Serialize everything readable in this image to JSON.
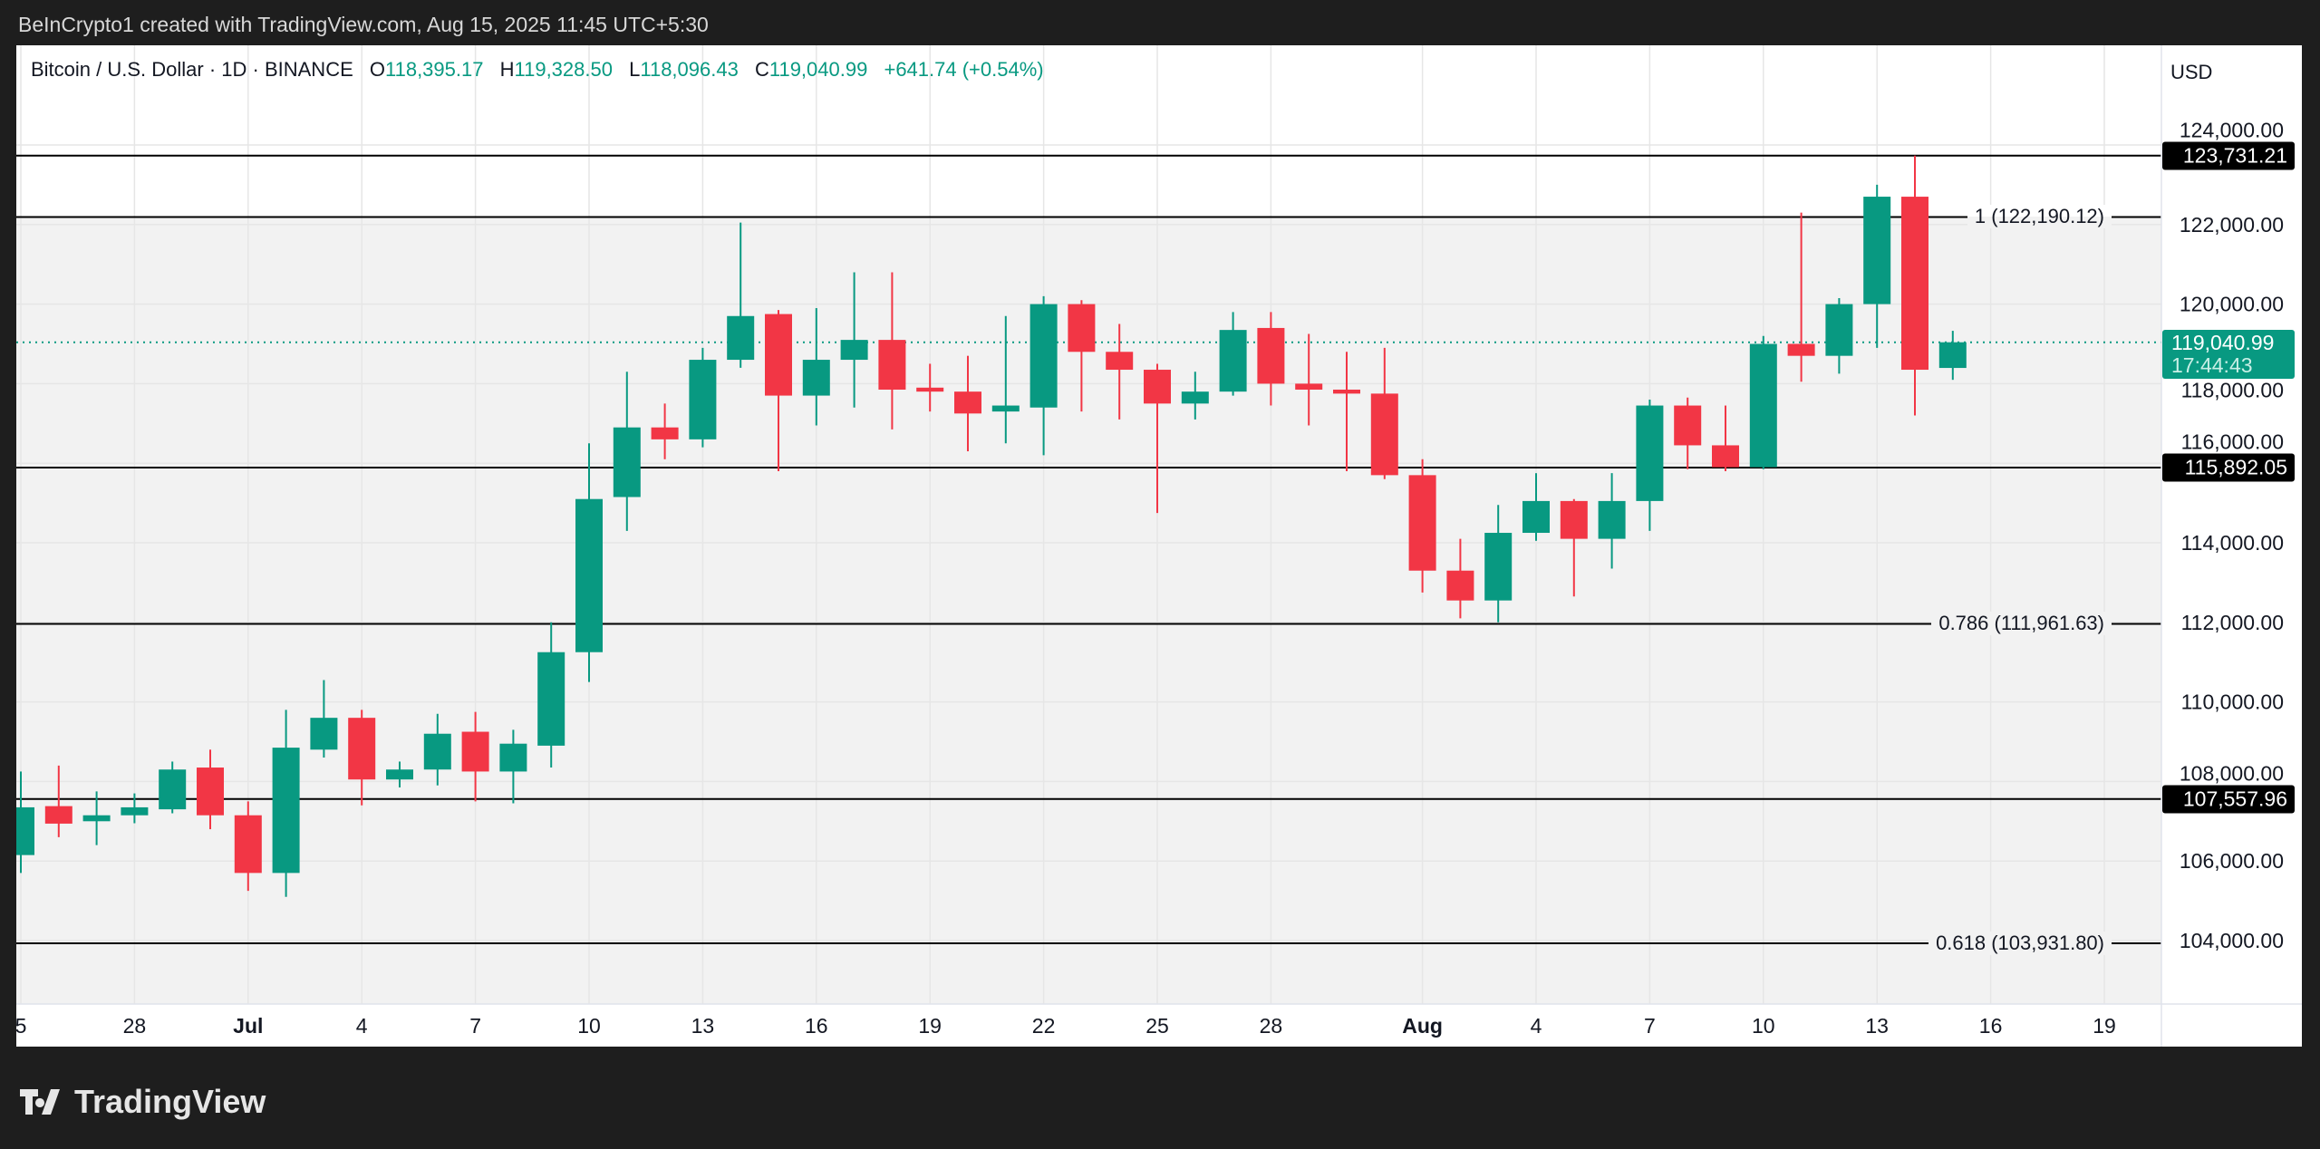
{
  "credit": "BeInCrypto1 created with TradingView.com, Aug 15, 2025 11:45 UTC+5:30",
  "legend": {
    "symbol": "Bitcoin / U.S. Dollar · 1D · BINANCE",
    "o_label": "O",
    "o": "118,395.17",
    "h_label": "H",
    "h": "119,328.50",
    "l_label": "L",
    "l": "118,096.43",
    "c_label": "C",
    "c": "119,040.99",
    "change": "+641.74 (+0.54%)"
  },
  "currency": "USD",
  "current_price": {
    "value": "119,040.99",
    "countdown": "17:44:43"
  },
  "logo_text": "TradingView",
  "colors": {
    "up": "#089981",
    "down": "#f23645",
    "line": "#000000",
    "grid": "#e6e6e6",
    "zone": "#f2f2f2"
  },
  "chart_data": {
    "type": "candlestick",
    "ylim": [
      102500,
      125600
    ],
    "grid": true,
    "y_ticks": [
      "104,000.00",
      "106,000.00",
      "108,000.00",
      "110,000.00",
      "112,000.00",
      "114,000.00",
      "116,000.00",
      "118,000.00",
      "120,000.00",
      "122,000.00",
      "124,000.00"
    ],
    "x_ticks": [
      {
        "date": "2025-06-25",
        "label": "5"
      },
      {
        "date": "2025-06-28",
        "label": "28"
      },
      {
        "date": "2025-07-01",
        "label": "Jul"
      },
      {
        "date": "2025-07-04",
        "label": "4"
      },
      {
        "date": "2025-07-07",
        "label": "7"
      },
      {
        "date": "2025-07-10",
        "label": "10"
      },
      {
        "date": "2025-07-13",
        "label": "13"
      },
      {
        "date": "2025-07-16",
        "label": "16"
      },
      {
        "date": "2025-07-19",
        "label": "19"
      },
      {
        "date": "2025-07-22",
        "label": "22"
      },
      {
        "date": "2025-07-25",
        "label": "25"
      },
      {
        "date": "2025-07-28",
        "label": "28"
      },
      {
        "date": "2025-08-01",
        "label": "Aug"
      },
      {
        "date": "2025-08-04",
        "label": "4"
      },
      {
        "date": "2025-08-07",
        "label": "7"
      },
      {
        "date": "2025-08-10",
        "label": "10"
      },
      {
        "date": "2025-08-13",
        "label": "13"
      },
      {
        "date": "2025-08-16",
        "label": "16"
      },
      {
        "date": "2025-08-19",
        "label": "19"
      }
    ],
    "candles": [
      {
        "date": "2025-06-25",
        "o": 106150,
        "h": 108250,
        "l": 105700,
        "c": 107350
      },
      {
        "date": "2025-06-26",
        "o": 107380,
        "h": 108400,
        "l": 106600,
        "c": 106940
      },
      {
        "date": "2025-06-27",
        "o": 107000,
        "h": 107750,
        "l": 106400,
        "c": 107150
      },
      {
        "date": "2025-06-28",
        "o": 107150,
        "h": 107700,
        "l": 106950,
        "c": 107350
      },
      {
        "date": "2025-06-29",
        "o": 107300,
        "h": 108500,
        "l": 107200,
        "c": 108300
      },
      {
        "date": "2025-06-30",
        "o": 108350,
        "h": 108800,
        "l": 106800,
        "c": 107150
      },
      {
        "date": "2025-07-01",
        "o": 107150,
        "h": 107500,
        "l": 105250,
        "c": 105700
      },
      {
        "date": "2025-07-02",
        "o": 105700,
        "h": 109800,
        "l": 105100,
        "c": 108850
      },
      {
        "date": "2025-07-03",
        "o": 108800,
        "h": 110550,
        "l": 108600,
        "c": 109600
      },
      {
        "date": "2025-07-04",
        "o": 109600,
        "h": 109800,
        "l": 107400,
        "c": 108050
      },
      {
        "date": "2025-07-05",
        "o": 108050,
        "h": 108500,
        "l": 107850,
        "c": 108300
      },
      {
        "date": "2025-07-06",
        "o": 108300,
        "h": 109700,
        "l": 107900,
        "c": 109200
      },
      {
        "date": "2025-07-07",
        "o": 109250,
        "h": 109750,
        "l": 107500,
        "c": 108250
      },
      {
        "date": "2025-07-08",
        "o": 108250,
        "h": 109300,
        "l": 107450,
        "c": 108950
      },
      {
        "date": "2025-07-09",
        "o": 108900,
        "h": 112000,
        "l": 108350,
        "c": 111250
      },
      {
        "date": "2025-07-10",
        "o": 111250,
        "h": 116500,
        "l": 110500,
        "c": 115100
      },
      {
        "date": "2025-07-11",
        "o": 115150,
        "h": 118300,
        "l": 114300,
        "c": 116900
      },
      {
        "date": "2025-07-12",
        "o": 116900,
        "h": 117500,
        "l": 116100,
        "c": 116600
      },
      {
        "date": "2025-07-13",
        "o": 116600,
        "h": 118900,
        "l": 116400,
        "c": 118600
      },
      {
        "date": "2025-07-14",
        "o": 118600,
        "h": 122050,
        "l": 118400,
        "c": 119700
      },
      {
        "date": "2025-07-15",
        "o": 119750,
        "h": 119850,
        "l": 115800,
        "c": 117700
      },
      {
        "date": "2025-07-16",
        "o": 117700,
        "h": 119900,
        "l": 116950,
        "c": 118600
      },
      {
        "date": "2025-07-17",
        "o": 118600,
        "h": 120800,
        "l": 117400,
        "c": 119100
      },
      {
        "date": "2025-07-18",
        "o": 119100,
        "h": 120800,
        "l": 116850,
        "c": 117850
      },
      {
        "date": "2025-07-19",
        "o": 117900,
        "h": 118500,
        "l": 117300,
        "c": 117800
      },
      {
        "date": "2025-07-20",
        "o": 117800,
        "h": 118700,
        "l": 116300,
        "c": 117250
      },
      {
        "date": "2025-07-21",
        "o": 117300,
        "h": 119700,
        "l": 116500,
        "c": 117450
      },
      {
        "date": "2025-07-22",
        "o": 117400,
        "h": 120200,
        "l": 116200,
        "c": 120000
      },
      {
        "date": "2025-07-23",
        "o": 120000,
        "h": 120100,
        "l": 117300,
        "c": 118800
      },
      {
        "date": "2025-07-24",
        "o": 118800,
        "h": 119500,
        "l": 117100,
        "c": 118350
      },
      {
        "date": "2025-07-25",
        "o": 118350,
        "h": 118500,
        "l": 114750,
        "c": 117500
      },
      {
        "date": "2025-07-26",
        "o": 117500,
        "h": 118300,
        "l": 117100,
        "c": 117800
      },
      {
        "date": "2025-07-27",
        "o": 117800,
        "h": 119800,
        "l": 117700,
        "c": 119350
      },
      {
        "date": "2025-07-28",
        "o": 119400,
        "h": 119800,
        "l": 117450,
        "c": 118000
      },
      {
        "date": "2025-07-29",
        "o": 118000,
        "h": 119250,
        "l": 116950,
        "c": 117850
      },
      {
        "date": "2025-07-30",
        "o": 117850,
        "h": 118800,
        "l": 115800,
        "c": 117750
      },
      {
        "date": "2025-07-31",
        "o": 117750,
        "h": 118900,
        "l": 115600,
        "c": 115700
      },
      {
        "date": "2025-08-01",
        "o": 115700,
        "h": 116100,
        "l": 112750,
        "c": 113300
      },
      {
        "date": "2025-08-02",
        "o": 113300,
        "h": 114100,
        "l": 112100,
        "c": 112550
      },
      {
        "date": "2025-08-03",
        "o": 112550,
        "h": 114950,
        "l": 112000,
        "c": 114250
      },
      {
        "date": "2025-08-04",
        "o": 114250,
        "h": 115750,
        "l": 114050,
        "c": 115050
      },
      {
        "date": "2025-08-05",
        "o": 115050,
        "h": 115100,
        "l": 112650,
        "c": 114100
      },
      {
        "date": "2025-08-06",
        "o": 114100,
        "h": 115750,
        "l": 113350,
        "c": 115050
      },
      {
        "date": "2025-08-07",
        "o": 115050,
        "h": 117600,
        "l": 114300,
        "c": 117450
      },
      {
        "date": "2025-08-08",
        "o": 117450,
        "h": 117650,
        "l": 115850,
        "c": 116450
      },
      {
        "date": "2025-08-09",
        "o": 116450,
        "h": 117450,
        "l": 115800,
        "c": 115900
      },
      {
        "date": "2025-08-10",
        "o": 115900,
        "h": 119200,
        "l": 115850,
        "c": 119000
      },
      {
        "date": "2025-08-11",
        "o": 119000,
        "h": 122300,
        "l": 118050,
        "c": 118700
      },
      {
        "date": "2025-08-12",
        "o": 118700,
        "h": 120150,
        "l": 118250,
        "c": 120000
      },
      {
        "date": "2025-08-13",
        "o": 120000,
        "h": 123000,
        "l": 118900,
        "c": 122700
      },
      {
        "date": "2025-08-14",
        "o": 122700,
        "h": 123731.21,
        "l": 117200,
        "c": 118350
      },
      {
        "date": "2025-08-15",
        "o": 118395.17,
        "h": 119328.5,
        "l": 118096.43,
        "c": 119040.99
      }
    ],
    "horizontal_levels": [
      {
        "price": 123731.21,
        "label": "123,731.21"
      },
      {
        "price": 115892.05,
        "label": "115,892.05"
      },
      {
        "price": 107557.96,
        "label": "107,557.96"
      }
    ],
    "fib_levels": [
      {
        "price": 122190.12,
        "label": "1 (122,190.12)"
      },
      {
        "price": 111961.63,
        "label": "0.786 (111,961.63)"
      },
      {
        "price": 103931.8,
        "label": "0.618 (103,931.80)"
      }
    ]
  }
}
